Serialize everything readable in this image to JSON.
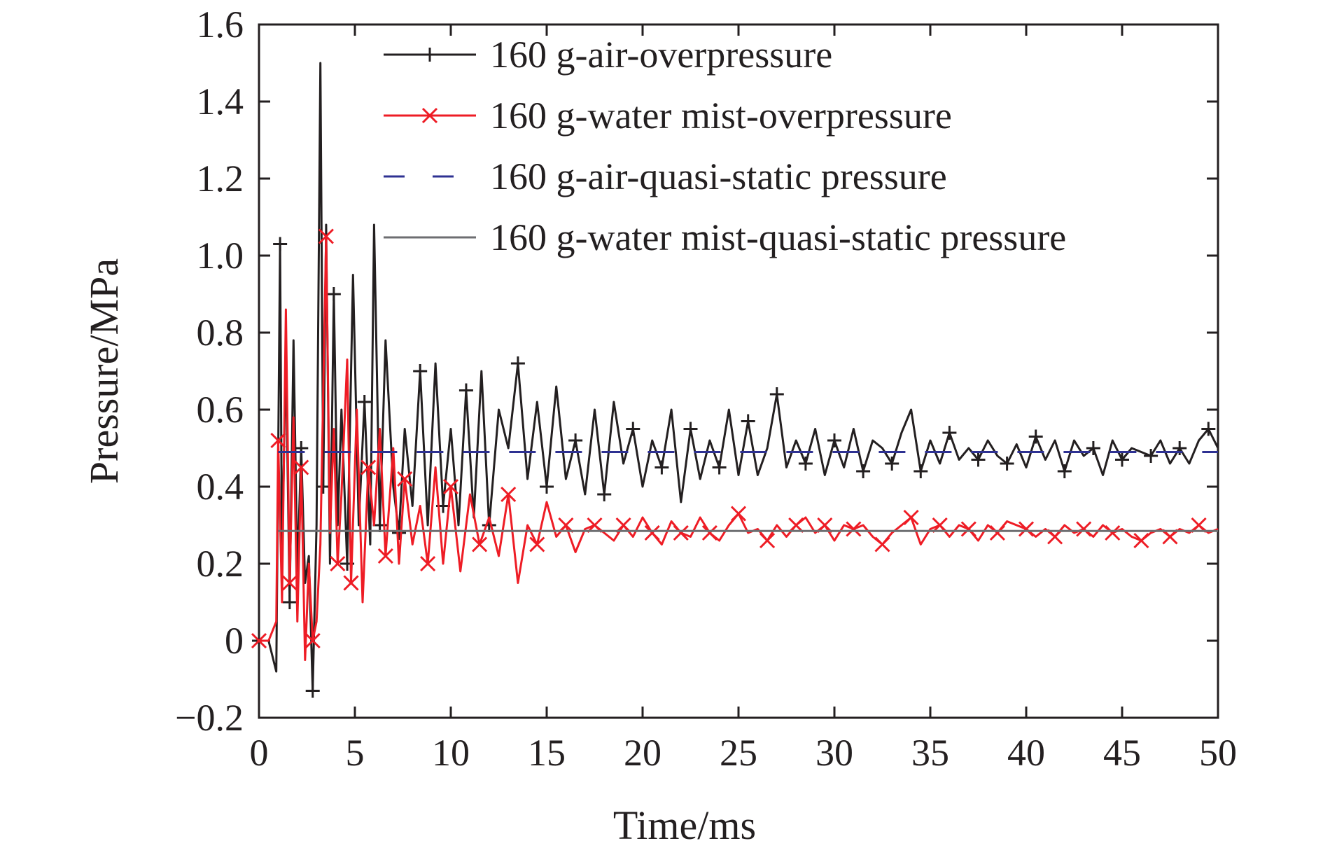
{
  "chart_data": {
    "type": "line",
    "title": "",
    "xlabel": "Time/ms",
    "ylabel": "Pressure/MPa",
    "xlim": [
      0,
      50
    ],
    "ylim": [
      -0.2,
      1.6
    ],
    "x_ticks": [
      0,
      5,
      10,
      15,
      20,
      25,
      30,
      35,
      40,
      45,
      50
    ],
    "x_tick_labels": [
      "0",
      "5",
      "10",
      "15",
      "20",
      "25",
      "30",
      "35",
      "40",
      "45",
      "50"
    ],
    "y_ticks": [
      -0.2,
      0,
      0.2,
      0.4,
      0.6,
      0.8,
      1.0,
      1.2,
      1.4,
      1.6
    ],
    "y_tick_labels": [
      "−0.2",
      "0",
      "0.2",
      "0.4",
      "0.6",
      "0.8",
      "1.0",
      "1.2",
      "1.4",
      "1.6"
    ],
    "grid": false,
    "legend_position": "top-right",
    "series": [
      {
        "name": "160 g-air-overpressure",
        "color": "#231f20",
        "style": "solid",
        "marker": "plus",
        "x": [
          0,
          0.5,
          0.9,
          1.1,
          1.2,
          1.4,
          1.6,
          1.8,
          2.0,
          2.2,
          2.4,
          2.6,
          2.8,
          3.0,
          3.2,
          3.35,
          3.5,
          3.7,
          3.9,
          4.1,
          4.3,
          4.6,
          4.9,
          5.2,
          5.5,
          5.8,
          6.0,
          6.3,
          6.6,
          7.0,
          7.3,
          7.6,
          8.0,
          8.4,
          8.8,
          9.2,
          9.6,
          10.0,
          10.4,
          10.8,
          11.2,
          11.6,
          12.0,
          12.5,
          13.0,
          13.5,
          14.0,
          14.5,
          15.0,
          15.5,
          16.0,
          16.5,
          17.0,
          17.5,
          18.0,
          18.5,
          19.0,
          19.5,
          20.0,
          20.5,
          21.0,
          21.5,
          22.0,
          22.5,
          23.0,
          23.5,
          24.0,
          24.5,
          25.0,
          25.5,
          26.0,
          26.5,
          27.0,
          27.5,
          28.0,
          28.5,
          29.0,
          29.5,
          30.0,
          30.5,
          31.0,
          31.5,
          32.0,
          32.5,
          33.0,
          33.5,
          34.0,
          34.5,
          35.0,
          35.5,
          36.0,
          36.5,
          37.0,
          37.5,
          38.0,
          38.5,
          39.0,
          39.5,
          40.0,
          40.5,
          41.0,
          41.5,
          42.0,
          42.5,
          43.0,
          43.5,
          44.0,
          44.5,
          45.0,
          45.5,
          46.0,
          46.5,
          47.0,
          47.5,
          48.0,
          48.5,
          49.0,
          49.5,
          50.0
        ],
        "y": [
          0,
          0.0,
          -0.08,
          1.03,
          0.2,
          0.75,
          0.1,
          0.78,
          0.18,
          0.5,
          0.15,
          0.22,
          -0.13,
          0.3,
          1.5,
          0.4,
          1.08,
          0.2,
          0.9,
          0.3,
          0.6,
          0.2,
          0.95,
          0.3,
          0.62,
          0.25,
          1.08,
          0.3,
          0.78,
          0.4,
          0.28,
          0.55,
          0.35,
          0.7,
          0.3,
          0.72,
          0.35,
          0.55,
          0.3,
          0.65,
          0.32,
          0.7,
          0.3,
          0.6,
          0.5,
          0.72,
          0.42,
          0.62,
          0.4,
          0.66,
          0.42,
          0.52,
          0.38,
          0.6,
          0.38,
          0.62,
          0.46,
          0.55,
          0.4,
          0.52,
          0.45,
          0.6,
          0.36,
          0.55,
          0.42,
          0.52,
          0.45,
          0.6,
          0.43,
          0.57,
          0.43,
          0.5,
          0.64,
          0.45,
          0.52,
          0.46,
          0.55,
          0.43,
          0.52,
          0.45,
          0.55,
          0.44,
          0.52,
          0.5,
          0.46,
          0.54,
          0.6,
          0.44,
          0.52,
          0.46,
          0.54,
          0.47,
          0.5,
          0.47,
          0.52,
          0.48,
          0.46,
          0.51,
          0.45,
          0.53,
          0.47,
          0.52,
          0.44,
          0.52,
          0.48,
          0.5,
          0.43,
          0.52,
          0.47,
          0.5,
          0.49,
          0.48,
          0.52,
          0.46,
          0.5,
          0.46,
          0.52,
          0.55,
          0.5
        ]
      },
      {
        "name": "160 g-water mist-overpressure",
        "color": "#ee1c25",
        "style": "solid",
        "marker": "x",
        "x": [
          0,
          0.5,
          0.9,
          1.0,
          1.2,
          1.4,
          1.6,
          1.8,
          2.0,
          2.2,
          2.4,
          2.6,
          2.8,
          3.0,
          3.2,
          3.5,
          3.7,
          3.9,
          4.1,
          4.3,
          4.6,
          4.8,
          5.1,
          5.4,
          5.7,
          6.0,
          6.3,
          6.6,
          7.0,
          7.3,
          7.6,
          8.0,
          8.4,
          8.8,
          9.2,
          9.6,
          10.0,
          10.5,
          11.0,
          11.5,
          12.0,
          12.5,
          13.0,
          13.5,
          14.0,
          14.5,
          15.0,
          15.5,
          16.0,
          16.5,
          17.0,
          17.5,
          18.0,
          18.5,
          19.0,
          19.5,
          20.0,
          20.5,
          21.0,
          21.5,
          22.0,
          22.5,
          23.0,
          23.5,
          24.0,
          24.5,
          25.0,
          25.5,
          26.0,
          26.5,
          27.0,
          27.5,
          28.0,
          28.5,
          29.0,
          29.5,
          30.0,
          30.5,
          31.0,
          31.5,
          32.0,
          32.5,
          33.0,
          33.5,
          34.0,
          34.5,
          35.0,
          35.5,
          36.0,
          36.5,
          37.0,
          37.5,
          38.0,
          38.5,
          39.0,
          39.5,
          40.0,
          40.5,
          41.0,
          41.5,
          42.0,
          42.5,
          43.0,
          43.5,
          44.0,
          44.5,
          45.0,
          45.5,
          46.0,
          46.5,
          47.0,
          47.5,
          48.0,
          48.5,
          49.0,
          49.5,
          50.0
        ],
        "y": [
          0,
          0.0,
          0.05,
          0.52,
          0.1,
          0.86,
          0.15,
          0.58,
          0.05,
          0.45,
          -0.05,
          0.2,
          0.0,
          0.05,
          0.25,
          1.05,
          0.28,
          0.55,
          0.2,
          0.38,
          0.73,
          0.15,
          0.6,
          0.1,
          0.45,
          0.3,
          0.55,
          0.22,
          0.5,
          0.2,
          0.42,
          0.25,
          0.35,
          0.2,
          0.45,
          0.2,
          0.4,
          0.18,
          0.38,
          0.25,
          0.32,
          0.22,
          0.38,
          0.15,
          0.3,
          0.25,
          0.36,
          0.27,
          0.3,
          0.23,
          0.29,
          0.3,
          0.28,
          0.26,
          0.3,
          0.27,
          0.32,
          0.28,
          0.25,
          0.31,
          0.28,
          0.27,
          0.32,
          0.28,
          0.26,
          0.3,
          0.33,
          0.28,
          0.29,
          0.26,
          0.3,
          0.27,
          0.3,
          0.32,
          0.28,
          0.3,
          0.26,
          0.3,
          0.29,
          0.3,
          0.27,
          0.25,
          0.28,
          0.3,
          0.32,
          0.25,
          0.29,
          0.3,
          0.27,
          0.3,
          0.29,
          0.26,
          0.3,
          0.28,
          0.31,
          0.3,
          0.29,
          0.27,
          0.29,
          0.27,
          0.3,
          0.28,
          0.29,
          0.27,
          0.3,
          0.28,
          0.29,
          0.27,
          0.26,
          0.28,
          0.29,
          0.27,
          0.29,
          0.28,
          0.3,
          0.28,
          0.29
        ]
      },
      {
        "name": "160 g-air-quasi-static pressure",
        "color": "#2e3192",
        "style": "dashed",
        "marker": "none",
        "x": [
          1.0,
          50
        ],
        "y": [
          0.49,
          0.49
        ]
      },
      {
        "name": "160 g-water mist-quasi-static pressure",
        "color": "#6d6e71",
        "style": "solid",
        "marker": "none",
        "x": [
          1.0,
          50
        ],
        "y": [
          0.285,
          0.285
        ]
      }
    ]
  }
}
